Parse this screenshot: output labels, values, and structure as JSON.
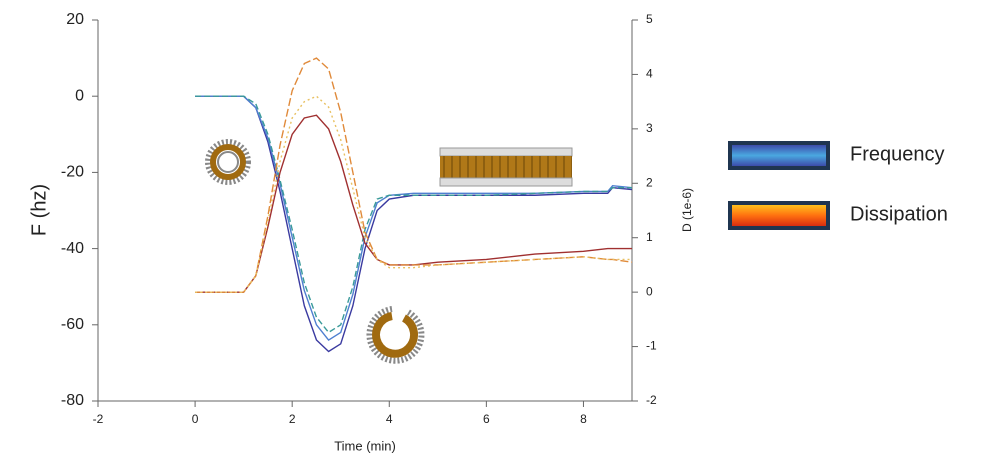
{
  "chart_data": {
    "type": "line",
    "xlabel": "Time (min)",
    "ylabel": "F (hz)",
    "y2label": "D (1e-6)",
    "xlim": [
      -2,
      9
    ],
    "xticks": [
      -2,
      0,
      2,
      4,
      6,
      8
    ],
    "ylim": [
      -80,
      20
    ],
    "yticks": [
      -80,
      -60,
      -40,
      -20,
      0,
      20
    ],
    "y2lim": [
      -2,
      5
    ],
    "y2ticks": [
      -2,
      -1,
      0,
      1,
      2,
      3,
      4,
      5
    ],
    "x": [
      0,
      0.5,
      1,
      1.25,
      1.5,
      1.75,
      2,
      2.25,
      2.5,
      2.75,
      3,
      3.25,
      3.5,
      3.75,
      4,
      4.5,
      5,
      6,
      7,
      8,
      8.5,
      8.6,
      9
    ],
    "series": [
      {
        "color": "#3a3aa0",
        "dash": "none",
        "values": [
          0,
          0,
          0,
          -3,
          -12,
          -25,
          -40,
          -55,
          -64,
          -67,
          -65,
          -55,
          -40,
          -30,
          -27,
          -26,
          -26,
          -26,
          -26,
          -25.5,
          -25.5,
          -24,
          -24.5
        ]
      },
      {
        "color": "#4f7fd0",
        "dash": "none",
        "values": [
          0,
          0,
          0,
          -3,
          -11,
          -23,
          -37,
          -51,
          -60,
          -64,
          -62,
          -52,
          -37,
          -28,
          -26,
          -25.5,
          -25.5,
          -25.5,
          -25.5,
          -25,
          -25,
          -23.5,
          -24
        ]
      },
      {
        "color": "#3a9a9a",
        "dash": "6,3",
        "values": [
          0,
          0,
          0,
          -2,
          -10,
          -22,
          -35,
          -49,
          -58,
          -62,
          -60,
          -50,
          -35,
          -27,
          -26,
          -26,
          -26,
          -26,
          -25.5,
          -25,
          -25,
          -24,
          -24
        ]
      },
      {
        "color": "#a03030",
        "dash": "none",
        "axis": "y2",
        "values": [
          0,
          0,
          0,
          0.3,
          1.2,
          2.2,
          2.9,
          3.2,
          3.25,
          3.0,
          2.4,
          1.6,
          0.9,
          0.6,
          0.5,
          0.5,
          0.55,
          0.6,
          0.7,
          0.75,
          0.8,
          0.8,
          0.8
        ]
      },
      {
        "color": "#e08a3a",
        "dash": "8,3",
        "axis": "y2",
        "values": [
          0,
          0,
          0,
          0.3,
          1.4,
          2.7,
          3.7,
          4.2,
          4.3,
          4.1,
          3.3,
          2.2,
          1.1,
          0.6,
          0.5,
          0.5,
          0.5,
          0.55,
          0.6,
          0.65,
          0.6,
          0.6,
          0.55
        ]
      },
      {
        "color": "#e8c060",
        "dash": "2,3",
        "axis": "y2",
        "values": [
          0,
          0,
          0,
          0.3,
          1.3,
          2.4,
          3.2,
          3.5,
          3.6,
          3.4,
          2.8,
          1.9,
          1.0,
          0.6,
          0.45,
          0.45,
          0.5,
          0.55,
          0.6,
          0.65,
          0.6,
          0.6,
          0.6
        ]
      }
    ],
    "legend": [
      {
        "label": "Frequency",
        "colors": [
          "#3a3aa0",
          "#4aa8e0",
          "#3a3aa0"
        ]
      },
      {
        "label": "Dissipation",
        "colors": [
          "#ffd020",
          "#ff7010",
          "#d02010"
        ]
      }
    ]
  }
}
